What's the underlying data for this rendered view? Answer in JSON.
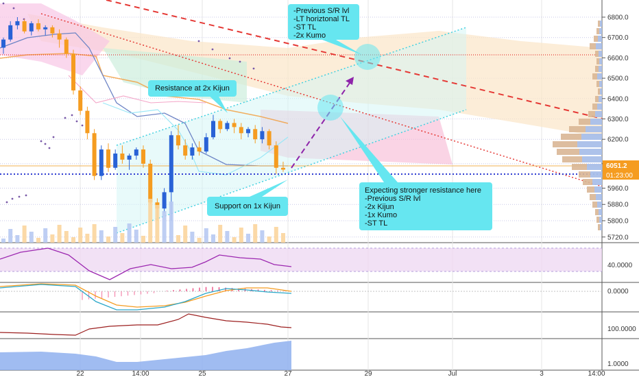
{
  "chart_data": {
    "type": "candlestick",
    "symbol_panes": 5,
    "price_axis": {
      "ticks": [
        "6800.0",
        "6700.0",
        "6600.0",
        "6500.0",
        "6400.0",
        "6300.0",
        "6200.0",
        "6080.0",
        "5960.0",
        "5880.0",
        "5800.0",
        "5720.0"
      ],
      "tick_values": [
        6800,
        6700,
        6600,
        6500,
        6400,
        6300,
        6200,
        6080,
        5960,
        5880,
        5800,
        5720
      ],
      "current_price": "6051.2",
      "countdown": "01:23:00"
    },
    "time_axis": {
      "ticks": [
        "22",
        "14:00",
        "25",
        "27",
        "29",
        "Jul",
        "3",
        "14:00"
      ]
    },
    "candles": [
      [
        6650,
        6700,
        6620,
        6690
      ],
      [
        6690,
        6780,
        6680,
        6760
      ],
      [
        6760,
        6800,
        6740,
        6780
      ],
      [
        6780,
        6790,
        6720,
        6730
      ],
      [
        6730,
        6780,
        6710,
        6770
      ],
      [
        6770,
        6790,
        6730,
        6740
      ],
      [
        6740,
        6760,
        6710,
        6750
      ],
      [
        6750,
        6760,
        6700,
        6720
      ],
      [
        6720,
        6740,
        6650,
        6690
      ],
      [
        6690,
        6700,
        6600,
        6620
      ],
      [
        6620,
        6640,
        6420,
        6440
      ],
      [
        6440,
        6460,
        6320,
        6340
      ],
      [
        6340,
        6360,
        6200,
        6230
      ],
      [
        6230,
        6250,
        6000,
        6020
      ],
      [
        6020,
        6170,
        6000,
        6150
      ],
      [
        6150,
        6180,
        6040,
        6060
      ],
      [
        6060,
        6150,
        6050,
        6130
      ],
      [
        6130,
        6170,
        6080,
        6100
      ],
      [
        6100,
        6130,
        6050,
        6120
      ],
      [
        6120,
        6160,
        6100,
        6150
      ],
      [
        6150,
        6170,
        6060,
        6080
      ],
      [
        6080,
        6100,
        5880,
        5890
      ],
      [
        5890,
        5910,
        5800,
        5860
      ],
      [
        5860,
        5960,
        5840,
        5940
      ],
      [
        5940,
        6240,
        5800,
        6220
      ],
      [
        6220,
        6270,
        6150,
        6170
      ],
      [
        6170,
        6200,
        6100,
        6120
      ],
      [
        6120,
        6180,
        6100,
        6160
      ],
      [
        6160,
        6190,
        6120,
        6140
      ],
      [
        6140,
        6230,
        6130,
        6210
      ],
      [
        6210,
        6320,
        6200,
        6290
      ],
      [
        6290,
        6300,
        6230,
        6250
      ],
      [
        6250,
        6290,
        6240,
        6280
      ],
      [
        6280,
        6300,
        6230,
        6260
      ],
      [
        6260,
        6280,
        6200,
        6230
      ],
      [
        6230,
        6260,
        6210,
        6250
      ],
      [
        6250,
        6270,
        6180,
        6200
      ],
      [
        6200,
        6260,
        6180,
        6240
      ],
      [
        6240,
        6250,
        6150,
        6170
      ],
      [
        6170,
        6190,
        6030,
        6060
      ],
      [
        6060,
        6090,
        6040,
        6051
      ]
    ],
    "series": [
      {
        "name": "",
        "pane": "rsi",
        "values": []
      },
      {
        "name": "",
        "pane": "macd",
        "values": []
      },
      {
        "name": "",
        "pane": "oscillator",
        "values": []
      },
      {
        "name": "",
        "pane": "volume-area",
        "values": []
      }
    ],
    "sub_axes": {
      "rsi": "40.0000",
      "macd": "0.0000",
      "third": "100.0000",
      "fourth": "1.0000"
    },
    "annotations": [
      {
        "key": "a1",
        "lines": [
          "-Previous S/R lvl",
          "-LT horiztonal TL",
          "-ST TL",
          "-2x Kumo"
        ]
      },
      {
        "key": "a2",
        "lines": [
          "Resistance at 2x Kijun"
        ]
      },
      {
        "key": "a3",
        "lines": [
          "Support on 1x Kijun"
        ]
      },
      {
        "key": "a4",
        "lines": [
          "Expecting stronger resistance here",
          "-Previous S/R lvl",
          "-2x Kijun",
          "-1x Kumo",
          "-ST TL"
        ]
      }
    ],
    "colors": {
      "bull": "#2962d6",
      "bear": "#f59c20",
      "callout": "#66e6f0",
      "resistance_line": "#e53935",
      "channel_line": "#40d0e0",
      "projection": "#8e24aa",
      "price_label": "#f59c20",
      "rsi_line": "#9c27b0"
    }
  },
  "callouts": {
    "a1": {
      "lines": [
        "-Previous S/R lvl",
        "-LT horiztonal TL",
        "-ST TL",
        "-2x Kumo"
      ]
    },
    "a2": {
      "lines": [
        "Resistance at 2x Kijun"
      ]
    },
    "a3": {
      "lines": [
        "Support on 1x Kijun"
      ]
    },
    "a4": {
      "lines": [
        "Expecting stronger resistance here",
        "-Previous S/R lvl",
        "-2x Kijun",
        "-1x Kumo",
        "-ST TL"
      ]
    }
  }
}
